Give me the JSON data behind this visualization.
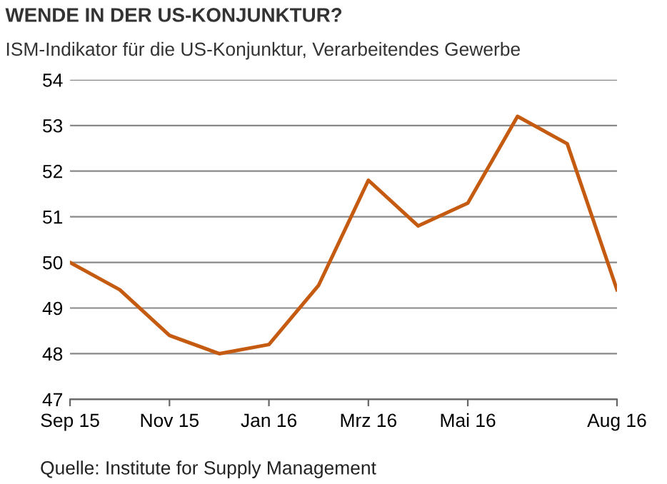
{
  "chart_data": {
    "type": "line",
    "title": "WENDE IN DER US-KONJUNKTUR?",
    "subtitle": "ISM-Indikator für die US-Konjunktur, Verarbeitendes Gewerbe",
    "categories": [
      "Sep 15",
      null,
      "Nov 15",
      null,
      "Jan 16",
      null,
      "Mrz 16",
      null,
      "Mai 16",
      null,
      null,
      "Aug 16"
    ],
    "series": [
      {
        "color": "#c55a11",
        "values": [
          50.0,
          49.4,
          48.4,
          48.0,
          48.2,
          49.5,
          51.8,
          50.8,
          51.3,
          53.2,
          52.6,
          49.4
        ]
      }
    ],
    "ylim": [
      47,
      54
    ],
    "yticks": [
      47,
      48,
      49,
      50,
      51,
      52,
      53,
      54
    ],
    "grid": "y",
    "annotations": [
      "Quelle: Institute for Supply Management"
    ]
  }
}
